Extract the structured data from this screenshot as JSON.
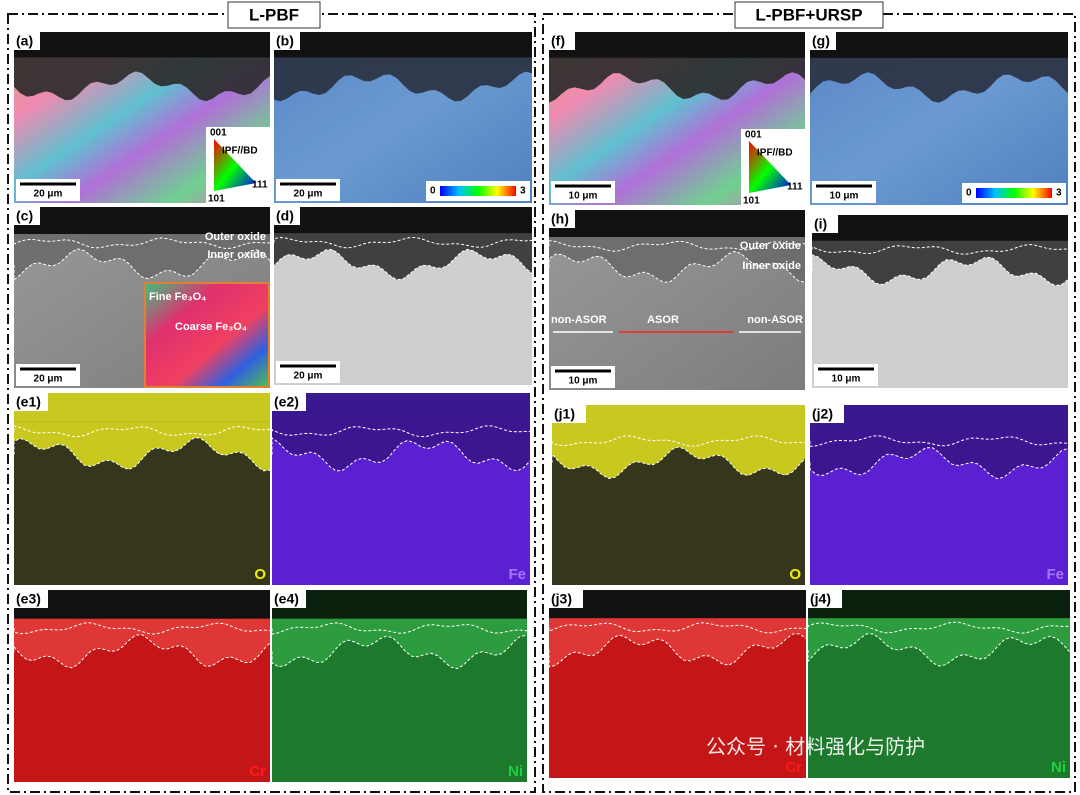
{
  "headers": {
    "left": "L-PBF",
    "right": "L-PBF+URSP"
  },
  "panels": [
    {
      "label": "(a)",
      "scale_bar": "20 μm",
      "legend": {
        "title": "IPF//BD",
        "corners": [
          "001",
          "101",
          "111"
        ]
      }
    },
    {
      "label": "(b)",
      "scale_bar": "20 μm",
      "colorbar": [
        "0",
        "3"
      ]
    },
    {
      "label": "(c)",
      "scale_bar": "20 μm",
      "annotations": [
        "Outer oxide",
        "Inner oxide"
      ],
      "inset": [
        "Fine Fe₃O₄",
        "Coarse Fe₃O₄"
      ]
    },
    {
      "label": "(d)",
      "scale_bar": "20 μm"
    },
    {
      "label": "(e1)",
      "element": "O"
    },
    {
      "label": "(e2)",
      "element": "Fe"
    },
    {
      "label": "(e3)",
      "element": "Cr"
    },
    {
      "label": "(e4)",
      "element": "Ni"
    },
    {
      "label": "(f)",
      "scale_bar": "10 μm",
      "legend": {
        "title": "IPF//BD",
        "corners": [
          "001",
          "101",
          "111"
        ]
      }
    },
    {
      "label": "(g)",
      "scale_bar": "10 μm",
      "colorbar": [
        "0",
        "3"
      ]
    },
    {
      "label": "(h)",
      "scale_bar": "10 μm",
      "annotations": [
        "Outer oxide",
        "Inner oxide",
        "non-ASOR",
        "ASOR",
        "non-ASOR"
      ]
    },
    {
      "label": "(i)",
      "scale_bar": "10 μm"
    },
    {
      "label": "(j1)",
      "element": "O"
    },
    {
      "label": "(j2)",
      "element": "Fe"
    },
    {
      "label": "(j3)",
      "element": "Cr"
    },
    {
      "label": "(j4)",
      "element": "Ni"
    }
  ],
  "watermark": "公众号 · 材料强化与防护"
}
